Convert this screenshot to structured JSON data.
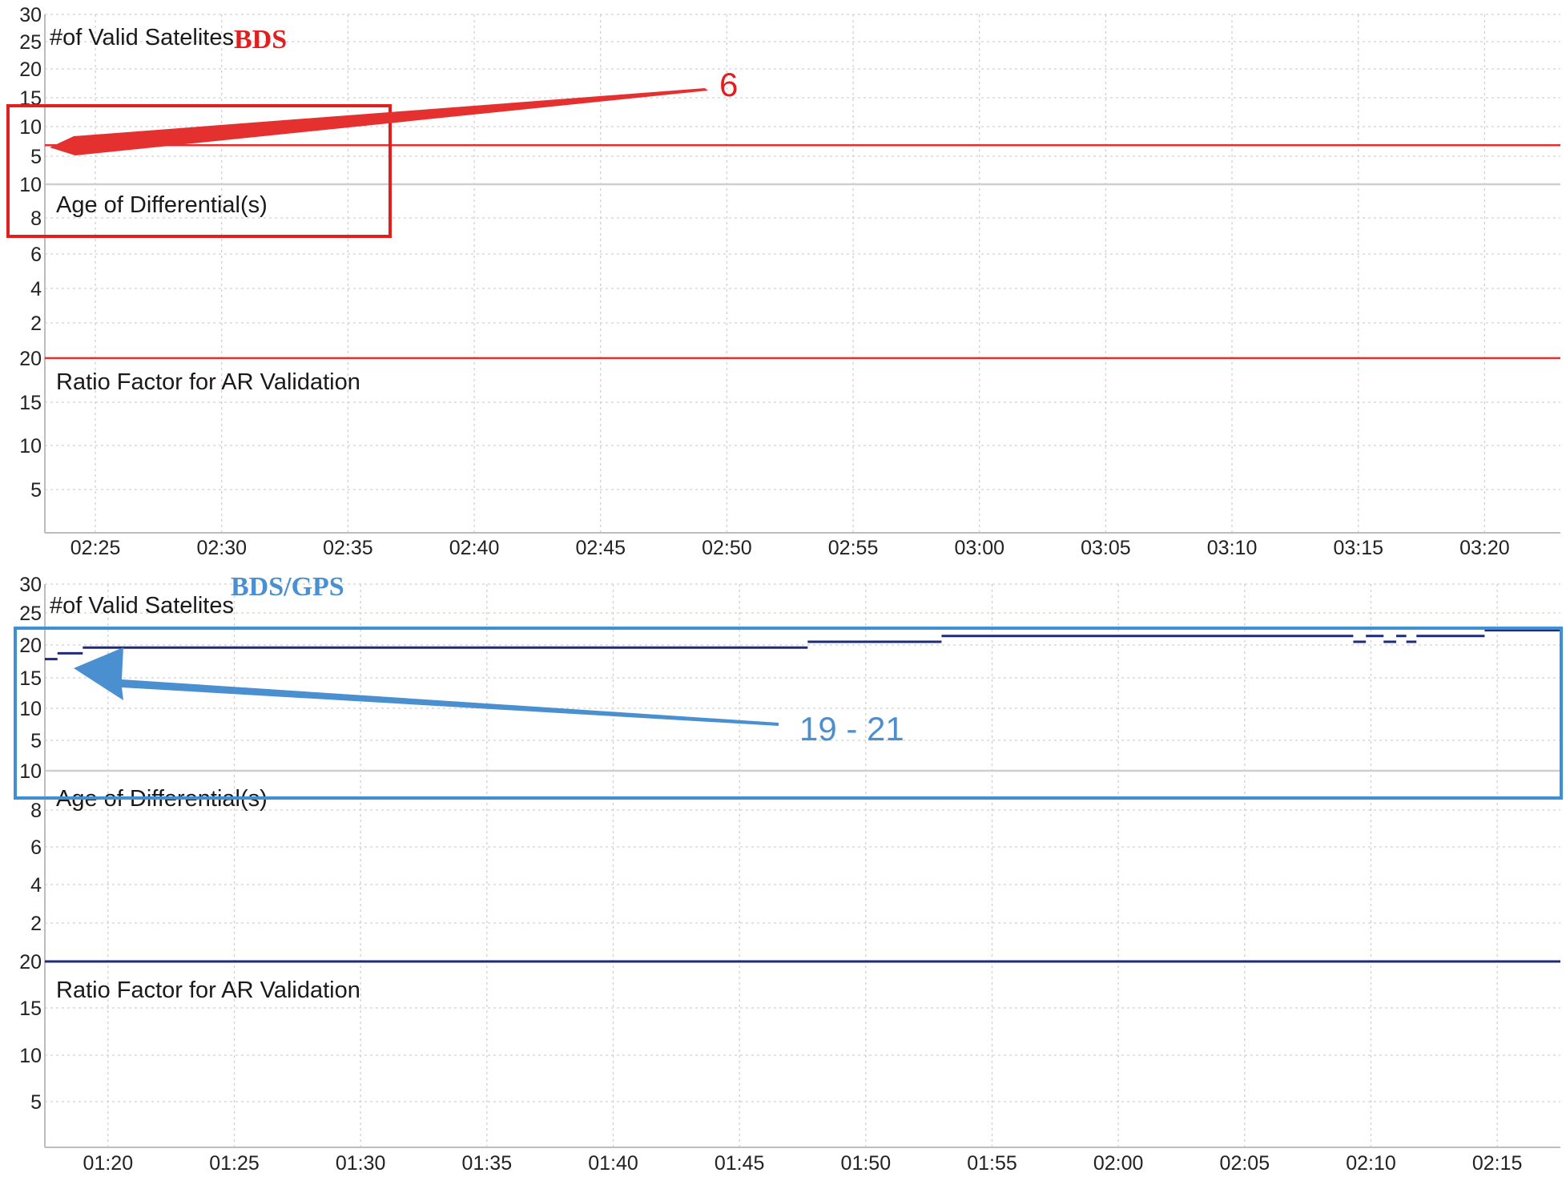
{
  "chart_data": [
    {
      "type": "line",
      "system_label": "BDS",
      "system_color": "#e02020",
      "series_color": "#e03030",
      "x_ticks": [
        "02:25",
        "02:30",
        "02:35",
        "02:40",
        "02:45",
        "02:50",
        "02:55",
        "03:00",
        "03:05",
        "03:10",
        "03:15",
        "03:20"
      ],
      "xlim": [
        "02:23",
        "03:23"
      ],
      "panels": [
        {
          "title": "#of Valid Satelites",
          "yticks": [
            30,
            25,
            20,
            15,
            10,
            5
          ],
          "ylim": [
            0,
            30
          ],
          "values": [
            {
              "t": "02:23",
              "v": 6
            },
            {
              "t": "03:23",
              "v": 6
            }
          ]
        },
        {
          "title": "Age of Differential(s)",
          "yticks": [
            10,
            8,
            6,
            4,
            2
          ],
          "ylim": [
            0,
            10
          ],
          "values": []
        },
        {
          "title": "Ratio Factor for AR Validation",
          "yticks": [
            20,
            15,
            10,
            5
          ],
          "ylim": [
            0,
            20
          ],
          "values": [
            {
              "t": "02:23",
              "v": 20
            },
            {
              "t": "03:23",
              "v": 20
            }
          ]
        }
      ],
      "annotation": {
        "text": "6",
        "color": "#e02020"
      }
    },
    {
      "type": "line",
      "system_label": "BDS/GPS",
      "system_color": "#4a8fd0",
      "series_color": "#1e2a7a",
      "x_ticks": [
        "01:20",
        "01:25",
        "01:30",
        "01:35",
        "01:40",
        "01:45",
        "01:50",
        "01:55",
        "02:00",
        "02:05",
        "02:10",
        "02:15"
      ],
      "xlim": [
        "01:17.5",
        "02:17.5"
      ],
      "panels": [
        {
          "title": "#of Valid Satelites",
          "yticks": [
            30,
            25,
            20,
            15,
            10,
            5
          ],
          "ylim": [
            0,
            30
          ],
          "values": [
            {
              "t": "01:17.5",
              "v": 17
            },
            {
              "t": "01:18",
              "v": 18
            },
            {
              "t": "01:19",
              "v": 19
            },
            {
              "t": "01:47.7",
              "v": 20
            },
            {
              "t": "01:53",
              "v": 21
            },
            {
              "t": "02:09.3",
              "v": 20
            },
            {
              "t": "02:09.8",
              "v": 21
            },
            {
              "t": "02:10.5",
              "v": 20
            },
            {
              "t": "02:11.0",
              "v": 21
            },
            {
              "t": "02:11.4",
              "v": 20
            },
            {
              "t": "02:11.8",
              "v": 21
            },
            {
              "t": "02:14.5",
              "v": 22
            },
            {
              "t": "02:17.5",
              "v": 22
            }
          ]
        },
        {
          "title": "Age of Differential(s)",
          "yticks": [
            10,
            8,
            6,
            4,
            2
          ],
          "ylim": [
            0,
            10
          ],
          "values": []
        },
        {
          "title": "Ratio Factor for AR Validation",
          "yticks": [
            20,
            15,
            10,
            5
          ],
          "ylim": [
            0,
            20
          ],
          "values": [
            {
              "t": "01:17.5",
              "v": 20
            },
            {
              "t": "02:17.5",
              "v": 20
            }
          ]
        }
      ],
      "annotation": {
        "text": "19 - 21",
        "color": "#4a8fd0"
      }
    }
  ]
}
